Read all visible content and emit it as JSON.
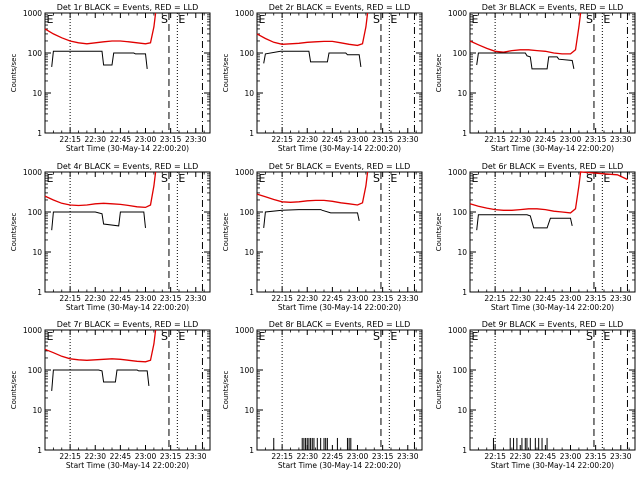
{
  "chart_data": [
    {
      "type": "line",
      "title": "Det 1r BLACK = Events, RED = LLD",
      "xlabel": "Start Time (30-May-14 22:00:20)",
      "ylabel": "Counts/sec",
      "ylim": [
        1,
        1000
      ],
      "ylog": true,
      "x_ticks": [
        "22:15",
        "22:30",
        "22:45",
        "23:00",
        "23:15",
        "23:30"
      ],
      "y_ticks": [
        "1",
        "10",
        "100",
        "1000"
      ],
      "markers": [
        {
          "label": "E",
          "at": "22:00:20"
        },
        {
          "label": "S",
          "at": "23:14"
        },
        {
          "label": "E",
          "at": "23:19"
        }
      ],
      "black_segments": [
        [
          [
            "22:04",
            45
          ],
          [
            "22:05",
            110
          ],
          [
            "22:30",
            110
          ],
          [
            "22:32",
            110
          ],
          [
            "22:34",
            110
          ],
          [
            "22:35",
            50
          ],
          [
            "22:40",
            50
          ],
          [
            "22:41",
            100
          ],
          [
            "22:53",
            100
          ],
          [
            "22:54",
            95
          ],
          [
            "23:00",
            95
          ],
          [
            "23:01",
            40
          ]
        ]
      ],
      "red": [
        [
          "22:00",
          400
        ],
        [
          "22:05",
          300
        ],
        [
          "22:10",
          240
        ],
        [
          "22:15",
          200
        ],
        [
          "22:20",
          180
        ],
        [
          "22:25",
          170
        ],
        [
          "22:30",
          180
        ],
        [
          "22:35",
          190
        ],
        [
          "22:40",
          200
        ],
        [
          "22:45",
          200
        ],
        [
          "22:50",
          190
        ],
        [
          "22:55",
          180
        ],
        [
          "23:00",
          170
        ],
        [
          "23:03",
          180
        ],
        [
          "23:05",
          450
        ],
        [
          "23:06",
          1000
        ]
      ]
    },
    {
      "type": "line",
      "title": "Det 2r BLACK = Events, RED = LLD",
      "xlabel": "Start Time (30-May-14 22:00:20)",
      "ylabel": "Counts/sec",
      "ylim": [
        1,
        1000
      ],
      "ylog": true,
      "x_ticks": [
        "22:15",
        "22:30",
        "22:45",
        "23:00",
        "23:15",
        "23:30"
      ],
      "y_ticks": [
        "1",
        "10",
        "100",
        "1000"
      ],
      "markers": [
        {
          "label": "E",
          "at": "22:00:20"
        },
        {
          "label": "S",
          "at": "23:14"
        },
        {
          "label": "E",
          "at": "23:19"
        }
      ],
      "black_segments": [
        [
          [
            "22:04",
            55
          ],
          [
            "22:05",
            95
          ],
          [
            "22:14",
            110
          ],
          [
            "22:31",
            110
          ],
          [
            "22:32",
            60
          ],
          [
            "22:42",
            60
          ],
          [
            "22:43",
            100
          ],
          [
            "22:53",
            100
          ],
          [
            "22:54",
            90
          ],
          [
            "23:01",
            90
          ],
          [
            "23:02",
            45
          ]
        ]
      ],
      "red": [
        [
          "22:00",
          300
        ],
        [
          "22:05",
          230
        ],
        [
          "22:10",
          185
        ],
        [
          "22:15",
          165
        ],
        [
          "22:20",
          170
        ],
        [
          "22:25",
          175
        ],
        [
          "22:30",
          185
        ],
        [
          "22:35",
          190
        ],
        [
          "22:40",
          195
        ],
        [
          "22:45",
          195
        ],
        [
          "22:50",
          180
        ],
        [
          "22:55",
          165
        ],
        [
          "23:00",
          155
        ],
        [
          "23:03",
          170
        ],
        [
          "23:05",
          450
        ],
        [
          "23:06",
          1000
        ]
      ]
    },
    {
      "type": "line",
      "title": "Det 3r BLACK = Events, RED = LLD",
      "xlabel": "Start Time (30-May-14 22:00:20)",
      "ylabel": "Counts/sec",
      "ylim": [
        1,
        1000
      ],
      "ylog": true,
      "x_ticks": [
        "22:15",
        "22:30",
        "22:45",
        "23:00",
        "23:15",
        "23:30"
      ],
      "y_ticks": [
        "1",
        "10",
        "100",
        "1000"
      ],
      "markers": [
        {
          "label": "E",
          "at": "22:00:20"
        },
        {
          "label": "S",
          "at": "23:14"
        },
        {
          "label": "E",
          "at": "23:19"
        }
      ],
      "black_segments": [
        [
          [
            "22:04",
            50
          ],
          [
            "22:05",
            100
          ],
          [
            "22:31",
            100
          ],
          [
            "22:33",
            100
          ],
          [
            "22:34",
            85
          ],
          [
            "22:36",
            80
          ],
          [
            "22:37",
            40
          ],
          [
            "22:46",
            40
          ],
          [
            "22:47",
            80
          ],
          [
            "22:52",
            80
          ],
          [
            "22:53",
            70
          ],
          [
            "23:01",
            65
          ],
          [
            "23:02",
            40
          ]
        ]
      ],
      "red": [
        [
          "22:00",
          200
        ],
        [
          "22:05",
          160
        ],
        [
          "22:10",
          130
        ],
        [
          "22:15",
          110
        ],
        [
          "22:20",
          105
        ],
        [
          "22:25",
          115
        ],
        [
          "22:30",
          120
        ],
        [
          "22:35",
          120
        ],
        [
          "22:40",
          115
        ],
        [
          "22:45",
          110
        ],
        [
          "22:50",
          100
        ],
        [
          "22:55",
          95
        ],
        [
          "23:00",
          95
        ],
        [
          "23:03",
          120
        ],
        [
          "23:05",
          450
        ],
        [
          "23:06",
          1000
        ]
      ]
    },
    {
      "type": "line",
      "title": "Det 4r BLACK = Events, RED = LLD",
      "xlabel": "Start Time (30-May-14 22:00:20)",
      "ylabel": "Counts/sec",
      "ylim": [
        1,
        1000
      ],
      "ylog": true,
      "x_ticks": [
        "22:15",
        "22:30",
        "22:45",
        "23:00",
        "23:15",
        "23:30"
      ],
      "y_ticks": [
        "1",
        "10",
        "100",
        "1000"
      ],
      "markers": [
        {
          "label": "E",
          "at": "22:00:20"
        },
        {
          "label": "S",
          "at": "23:14"
        },
        {
          "label": "E",
          "at": "23:19"
        }
      ],
      "black_segments": [
        [
          [
            "22:04",
            35
          ],
          [
            "22:05",
            100
          ],
          [
            "22:30",
            100
          ],
          [
            "22:32",
            95
          ],
          [
            "22:34",
            90
          ],
          [
            "22:35",
            50
          ],
          [
            "22:44",
            45
          ],
          [
            "22:45",
            100
          ],
          [
            "22:59",
            100
          ],
          [
            "23:00",
            40
          ]
        ]
      ],
      "red": [
        [
          "22:00",
          250
        ],
        [
          "22:05",
          200
        ],
        [
          "22:10",
          165
        ],
        [
          "22:15",
          150
        ],
        [
          "22:20",
          145
        ],
        [
          "22:25",
          150
        ],
        [
          "22:30",
          160
        ],
        [
          "22:35",
          165
        ],
        [
          "22:40",
          160
        ],
        [
          "22:45",
          155
        ],
        [
          "22:50",
          145
        ],
        [
          "22:55",
          135
        ],
        [
          "23:00",
          130
        ],
        [
          "23:03",
          150
        ],
        [
          "23:05",
          450
        ],
        [
          "23:06",
          1000
        ]
      ]
    },
    {
      "type": "line",
      "title": "Det 5r BLACK = Events, RED = LLD",
      "xlabel": "Start Time (30-May-14 22:00:20)",
      "ylabel": "Counts/sec",
      "ylim": [
        1,
        1000
      ],
      "ylog": true,
      "x_ticks": [
        "22:15",
        "22:30",
        "22:45",
        "23:00",
        "23:15",
        "23:30"
      ],
      "y_ticks": [
        "1",
        "10",
        "100",
        "1000"
      ],
      "markers": [
        {
          "label": "E",
          "at": "22:00:20"
        },
        {
          "label": "S",
          "at": "23:14"
        },
        {
          "label": "E",
          "at": "23:19"
        }
      ],
      "black_segments": [
        [
          [
            "22:04",
            40
          ],
          [
            "22:05",
            100
          ],
          [
            "22:15",
            110
          ],
          [
            "22:25",
            115
          ],
          [
            "22:35",
            115
          ],
          [
            "22:38",
            115
          ],
          [
            "22:39",
            110
          ],
          [
            "22:44",
            95
          ],
          [
            "22:45",
            95
          ],
          [
            "23:00",
            95
          ],
          [
            "23:01",
            60
          ]
        ]
      ],
      "red": [
        [
          "22:00",
          280
        ],
        [
          "22:05",
          240
        ],
        [
          "22:10",
          205
        ],
        [
          "22:15",
          180
        ],
        [
          "22:20",
          175
        ],
        [
          "22:25",
          180
        ],
        [
          "22:30",
          190
        ],
        [
          "22:35",
          195
        ],
        [
          "22:40",
          195
        ],
        [
          "22:45",
          185
        ],
        [
          "22:50",
          170
        ],
        [
          "22:55",
          160
        ],
        [
          "23:00",
          150
        ],
        [
          "23:03",
          170
        ],
        [
          "23:05",
          450
        ],
        [
          "23:06",
          1000
        ]
      ]
    },
    {
      "type": "line",
      "title": "Det 6r BLACK = Events, RED = LLD",
      "xlabel": "Start Time (30-May-14 22:00:20)",
      "ylabel": "Counts/sec",
      "ylim": [
        1,
        1000
      ],
      "ylog": true,
      "x_ticks": [
        "22:15",
        "22:30",
        "22:45",
        "23:00",
        "23:15",
        "23:30"
      ],
      "y_ticks": [
        "1",
        "10",
        "100",
        "1000"
      ],
      "markers": [
        {
          "label": "E",
          "at": "22:00:20"
        },
        {
          "label": "S",
          "at": "23:14"
        },
        {
          "label": "E",
          "at": "23:19"
        }
      ],
      "black_segments": [
        [
          [
            "22:04",
            35
          ],
          [
            "22:05",
            85
          ],
          [
            "22:34",
            85
          ],
          [
            "22:36",
            80
          ],
          [
            "22:38",
            40
          ],
          [
            "22:46",
            40
          ],
          [
            "22:48",
            70
          ],
          [
            "23:00",
            70
          ],
          [
            "23:01",
            45
          ]
        ]
      ],
      "red": [
        [
          "22:00",
          160
        ],
        [
          "22:05",
          140
        ],
        [
          "22:10",
          125
        ],
        [
          "22:15",
          115
        ],
        [
          "22:20",
          110
        ],
        [
          "22:25",
          110
        ],
        [
          "22:30",
          115
        ],
        [
          "22:35",
          120
        ],
        [
          "22:40",
          120
        ],
        [
          "22:45",
          115
        ],
        [
          "22:50",
          105
        ],
        [
          "22:55",
          100
        ],
        [
          "23:00",
          95
        ],
        [
          "23:03",
          120
        ],
        [
          "23:05",
          450
        ],
        [
          "23:06",
          1000
        ],
        [
          "23:20",
          900
        ],
        [
          "23:28",
          850
        ],
        [
          "23:34",
          650
        ]
      ]
    },
    {
      "type": "line",
      "title": "Det 7r BLACK = Events, RED = LLD",
      "xlabel": "Start Time (30-May-14 22:00:20)",
      "ylabel": "Counts/sec",
      "ylim": [
        1,
        1000
      ],
      "ylog": true,
      "x_ticks": [
        "22:15",
        "22:30",
        "22:45",
        "23:00",
        "23:15",
        "23:30"
      ],
      "y_ticks": [
        "1",
        "10",
        "100",
        "1000"
      ],
      "markers": [
        {
          "label": "E",
          "at": "22:00:20"
        },
        {
          "label": "S",
          "at": "23:14"
        },
        {
          "label": "E",
          "at": "23:19"
        }
      ],
      "black_segments": [
        [
          [
            "22:04",
            30
          ],
          [
            "22:05",
            100
          ],
          [
            "22:29",
            100
          ],
          [
            "22:32",
            100
          ],
          [
            "22:34",
            95
          ],
          [
            "22:35",
            50
          ],
          [
            "22:42",
            50
          ],
          [
            "22:43",
            100
          ],
          [
            "22:55",
            100
          ],
          [
            "22:56",
            95
          ],
          [
            "23:01",
            95
          ],
          [
            "23:02",
            40
          ]
        ]
      ],
      "red": [
        [
          "22:00",
          330
        ],
        [
          "22:05",
          270
        ],
        [
          "22:10",
          220
        ],
        [
          "22:15",
          190
        ],
        [
          "22:20",
          180
        ],
        [
          "22:25",
          175
        ],
        [
          "22:30",
          180
        ],
        [
          "22:35",
          185
        ],
        [
          "22:40",
          190
        ],
        [
          "22:45",
          185
        ],
        [
          "22:50",
          175
        ],
        [
          "22:55",
          165
        ],
        [
          "23:00",
          160
        ],
        [
          "23:03",
          175
        ],
        [
          "23:05",
          450
        ],
        [
          "23:06",
          1000
        ]
      ]
    },
    {
      "type": "line",
      "title": "Det 8r BLACK = Events, RED = LLD",
      "xlabel": "Start Time (30-May-14 22:00:20)",
      "ylabel": "Counts/sec",
      "ylim": [
        1,
        1000
      ],
      "ylog": true,
      "x_ticks": [
        "22:15",
        "22:30",
        "22:45",
        "23:00",
        "23:15",
        "23:30"
      ],
      "y_ticks": [
        "1",
        "10",
        "100",
        "1000"
      ],
      "markers": [
        {
          "label": "E",
          "at": "22:00:20"
        },
        {
          "label": "S",
          "at": "23:14"
        },
        {
          "label": "E",
          "at": "23:19"
        }
      ],
      "black_spikes": [
        "22:10",
        "22:27",
        "22:28",
        "22:29",
        "22:30",
        "22:31",
        "22:32",
        "22:33",
        "22:34",
        "22:36",
        "22:38",
        "22:40",
        "22:41",
        "22:42",
        "22:48",
        "22:54",
        "22:55",
        "22:56"
      ],
      "spike_value": 2,
      "red": []
    },
    {
      "type": "line",
      "title": "Det 9r BLACK = Events, RED = LLD",
      "xlabel": "Start Time (30-May-14 22:00:20)",
      "ylabel": "Counts/sec",
      "ylim": [
        1,
        1000
      ],
      "ylog": true,
      "x_ticks": [
        "22:15",
        "22:30",
        "22:45",
        "23:00",
        "23:15",
        "23:30"
      ],
      "y_ticks": [
        "1",
        "10",
        "100",
        "1000"
      ],
      "markers": [
        {
          "label": "E",
          "at": "22:00:20"
        },
        {
          "label": "S",
          "at": "23:14"
        },
        {
          "label": "E",
          "at": "23:19"
        }
      ],
      "black_spikes": [
        "22:14",
        "22:24",
        "22:26",
        "22:28",
        "22:31",
        "22:33",
        "22:34",
        "22:36",
        "22:39",
        "22:41",
        "22:43",
        "22:46"
      ],
      "spike_value": 2,
      "red": []
    }
  ],
  "colors": {
    "events": "#000000",
    "lld": "#e00000",
    "axes": "#000000",
    "background": "#ffffff"
  }
}
